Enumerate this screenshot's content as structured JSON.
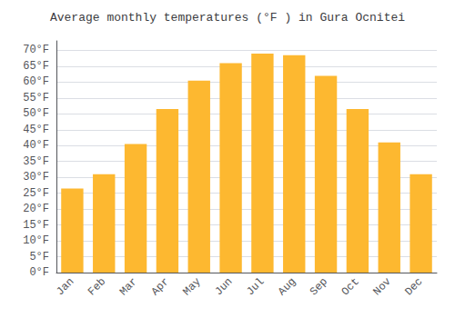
{
  "chart_data": {
    "type": "bar",
    "title": "Average monthly temperatures (°F ) in Gura Ocnitei",
    "categories": [
      "Jan",
      "Feb",
      "Mar",
      "Apr",
      "May",
      "Jun",
      "Jul",
      "Aug",
      "Sep",
      "Oct",
      "Nov",
      "Dec"
    ],
    "values": [
      26.5,
      31.0,
      40.5,
      51.5,
      60.5,
      66.0,
      69.0,
      68.5,
      62.0,
      51.5,
      41.0,
      31.0
    ],
    "color": "#FDB830",
    "ylim": [
      0,
      73
    ],
    "yticks": [
      {
        "value": 0,
        "label": "0°F"
      },
      {
        "value": 5,
        "label": "5°F"
      },
      {
        "value": 10,
        "label": "10°F"
      },
      {
        "value": 15,
        "label": "15°F"
      },
      {
        "value": 20,
        "label": "20°F"
      },
      {
        "value": 25,
        "label": "25°F"
      },
      {
        "value": 30,
        "label": "30°F"
      },
      {
        "value": 35,
        "label": "35°F"
      },
      {
        "value": 40,
        "label": "40°F"
      },
      {
        "value": 45,
        "label": "45°F"
      },
      {
        "value": 50,
        "label": "50°F"
      },
      {
        "value": 55,
        "label": "55°F"
      },
      {
        "value": 60,
        "label": "60°F"
      },
      {
        "value": 65,
        "label": "65°F"
      },
      {
        "value": 70,
        "label": "70°F"
      }
    ],
    "grid": true
  }
}
